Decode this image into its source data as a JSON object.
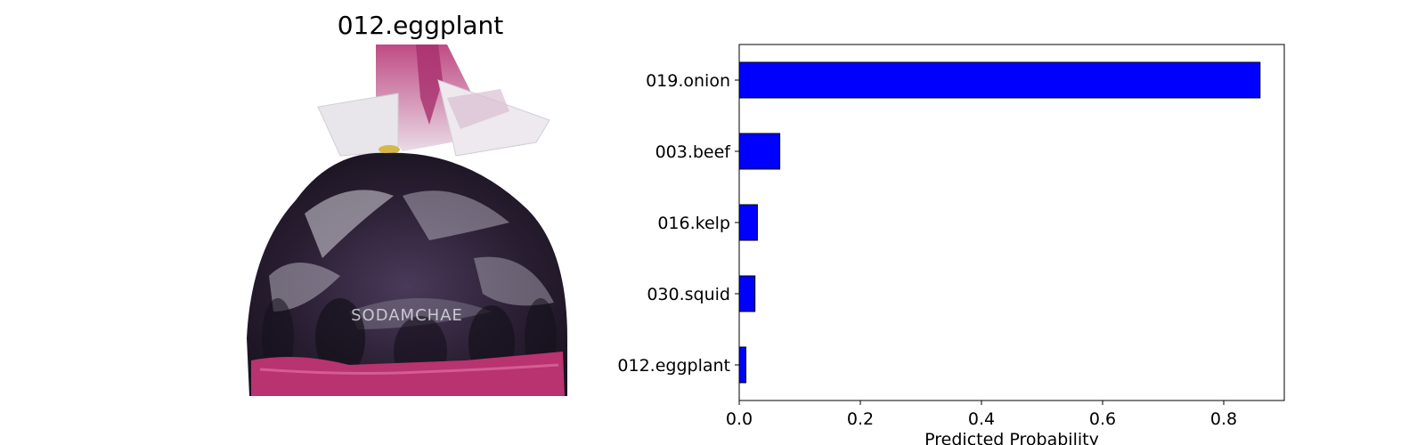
{
  "image_panel": {
    "title": "012.eggplant",
    "photo_description_icon": "eggplant-bag-photo",
    "bag_print": "SODAMCHAE"
  },
  "chart_data": {
    "type": "bar",
    "orientation": "horizontal",
    "categories": [
      "019.onion",
      "003.beef",
      "016.kelp",
      "030.squid",
      "012.eggplant"
    ],
    "values": [
      0.86,
      0.067,
      0.03,
      0.026,
      0.011
    ],
    "xlabel": "Predicted Probability",
    "ylabel": "",
    "xlim": [
      0,
      0.9
    ],
    "xticks": [
      "0.0",
      "0.2",
      "0.4",
      "0.6",
      "0.8"
    ],
    "grid": false,
    "bar_color": "#0000ff",
    "edge_color": "#000000"
  }
}
